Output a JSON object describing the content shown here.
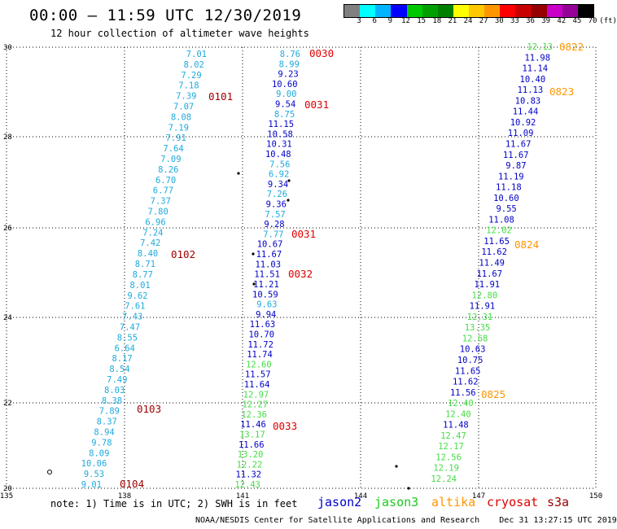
{
  "header": {
    "title": "00:00 – 11:59 UTC 12/30/2019",
    "subtitle": "12 hour collection of altimeter wave heights"
  },
  "colorbar": {
    "colors": [
      "#808080",
      "#00ffff",
      "#00b4ff",
      "#0000ff",
      "#00c800",
      "#00a000",
      "#008000",
      "#ffff00",
      "#ffc800",
      "#ff9600",
      "#ff0000",
      "#c80000",
      "#960000",
      "#c800c8",
      "#960096",
      "#000000"
    ],
    "labels": [
      "3",
      "6",
      "9",
      "12",
      "15",
      "18",
      "21",
      "24",
      "27",
      "30",
      "33",
      "36",
      "39",
      "42",
      "45",
      "70",
      "(ft)"
    ]
  },
  "map": {
    "x_ticks": [
      "135",
      "138",
      "141",
      "144",
      "147",
      "150"
    ],
    "y_ticks": [
      "30",
      "28",
      "26",
      "24",
      "22",
      "20"
    ],
    "colors": {
      "jason2": "#0000c8",
      "jason3": "#46dc46",
      "altika": "#ff9600",
      "cryosat": "#e00000",
      "s3a": "#a00000",
      "cyan": "#1eaadc",
      "grid": "#000000"
    },
    "tracks": [
      {
        "satellite": "s3a",
        "color": "#1eaadc",
        "values": [
          "7.01",
          "8.02",
          "7.29",
          "7.18",
          "7.39",
          "7.07",
          "8.08",
          "7.19",
          "7.91",
          "7.64",
          "7.09",
          "8.26",
          "6.70",
          "6.77",
          "7.37",
          "7.80",
          "6.96",
          "7.24",
          "7.42",
          "8.40",
          "8.71",
          "8.77",
          "8.01",
          "9.62",
          "7.61",
          "7.43",
          "7.47",
          "8.55",
          "6.64",
          "8.17",
          "8.54",
          "7.49",
          "8.03",
          "8.38",
          "7.89",
          "8.37",
          "8.94",
          "9.78",
          "8.09",
          "10.06",
          "9.53",
          "9.01"
        ]
      },
      {
        "satellite": "jason2-jason3",
        "color": "#0000c8",
        "values": [
          "8.76",
          "8.99",
          "9.23",
          "10.60",
          "9.00",
          "9.54",
          "8.75",
          "11.15",
          "10.58",
          "10.31",
          "10.48",
          "7.56",
          "6.92",
          "9.34",
          "7.26",
          "9.36",
          "7.57",
          "9.28",
          "7.77",
          "10.67",
          "11.67",
          "11.03",
          "11.51",
          "11.21",
          "10.59",
          "9.63",
          "9.94",
          "11.63",
          "10.70",
          "11.72",
          "11.74",
          "12.60",
          "11.57",
          "11.64",
          "12.97",
          "12.27",
          "12.36",
          "11.46",
          "13.17",
          "11.66",
          "13.20",
          "12.22",
          "11.32",
          "12.43"
        ],
        "colorsPerValue": [
          "c",
          "c",
          "b",
          "b",
          "c",
          "b",
          "c",
          "b",
          "b",
          "b",
          "b",
          "c",
          "c",
          "b",
          "c",
          "b",
          "c",
          "b",
          "c",
          "b",
          "b",
          "b",
          "b",
          "b",
          "b",
          "c",
          "b",
          "b",
          "b",
          "b",
          "b",
          "g",
          "b",
          "b",
          "g",
          "g",
          "g",
          "b",
          "g",
          "b",
          "g",
          "g",
          "b",
          "g"
        ]
      },
      {
        "satellite": "jason3-track",
        "color": "#0000c8",
        "values": [
          "12.13",
          "11.98",
          "11.14",
          "10.40",
          "11.13",
          "10.83",
          "11.44",
          "10.92",
          "11.09",
          "11.67",
          "11.67",
          "9.87",
          "11.19",
          "11.18",
          "10.60",
          "9.55",
          "11.08",
          "12.02",
          "11.65",
          "11.62",
          "11.49",
          "11.67",
          "11.91",
          "12.80",
          "11.91",
          "12.31",
          "13.35",
          "12.68",
          "10.63",
          "10.75",
          "11.65",
          "11.62",
          "11.56",
          "12.40",
          "12.40",
          "11.48",
          "12.47",
          "12.17",
          "12.56",
          "12.19",
          "12.24"
        ],
        "colorsPerValue": [
          "g",
          "b",
          "b",
          "b",
          "b",
          "b",
          "b",
          "b",
          "b",
          "b",
          "b",
          "b",
          "b",
          "b",
          "b",
          "b",
          "b",
          "g",
          "b",
          "b",
          "b",
          "b",
          "b",
          "g",
          "b",
          "g",
          "g",
          "g",
          "b",
          "b",
          "b",
          "b",
          "b",
          "g",
          "g",
          "b",
          "g",
          "g",
          "g",
          "g",
          "g"
        ]
      }
    ],
    "time_labels": [
      {
        "text": "0030",
        "color": "#e00000"
      },
      {
        "text": "0101",
        "color": "#a00000"
      },
      {
        "text": "0031",
        "color": "#e00000"
      },
      {
        "text": "0822",
        "color": "#ff9600"
      },
      {
        "text": "0823",
        "color": "#ff9600"
      },
      {
        "text": "0031",
        "color": "#e00000"
      },
      {
        "text": "0102",
        "color": "#a00000"
      },
      {
        "text": "0824",
        "color": "#ff9600"
      },
      {
        "text": "0032",
        "color": "#e00000"
      },
      {
        "text": "0825",
        "color": "#ff9600"
      },
      {
        "text": "0103",
        "color": "#a00000"
      },
      {
        "text": "0033",
        "color": "#e00000"
      },
      {
        "text": "0104",
        "color": "#a00000"
      }
    ]
  },
  "note": "note: 1) Time is in UTC; 2) SWH is in feet",
  "legend": [
    {
      "label": "jason2",
      "color": "#0000c8"
    },
    {
      "label": "jason3",
      "color": "#1ec81e"
    },
    {
      "label": "altika",
      "color": "#ff9600"
    },
    {
      "label": "cryosat",
      "color": "#e00000"
    },
    {
      "label": "s3a",
      "color": "#a00000"
    }
  ],
  "footer": "NOAA/NESDIS Center for Satellite Applications and Research    Dec 31 13:27:15 UTC 2019"
}
